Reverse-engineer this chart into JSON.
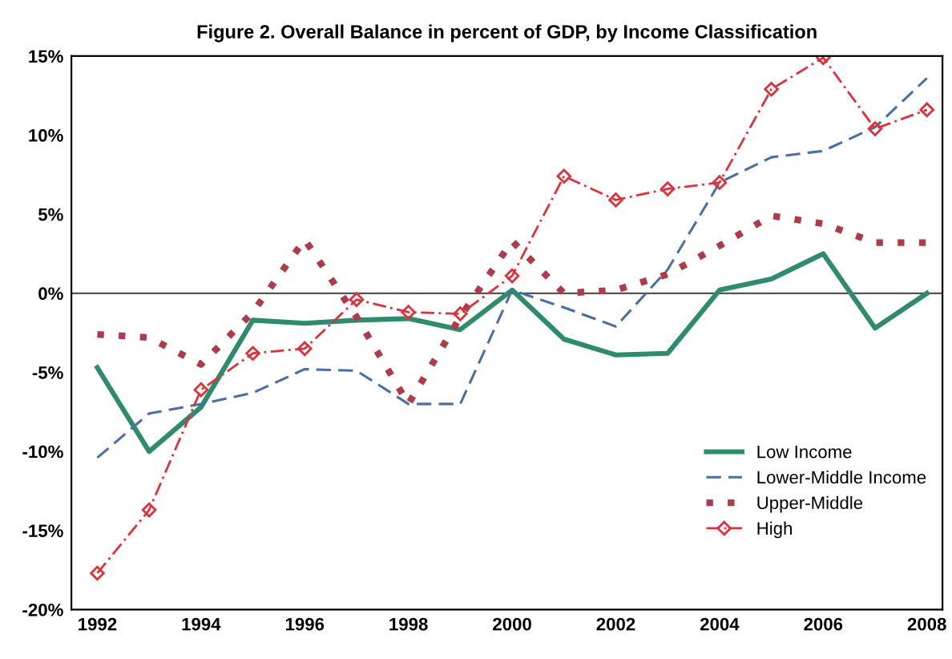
{
  "chart_data": {
    "type": "line",
    "title": "Figure 2. Overall Balance in percent of GDP, by Income Classification",
    "x": [
      1992,
      1993,
      1994,
      1995,
      1996,
      1997,
      1998,
      1999,
      2000,
      2001,
      2002,
      2003,
      2004,
      2005,
      2006,
      2007,
      2008
    ],
    "series": [
      {
        "name": "Low Income",
        "color": "#2e8b6e",
        "line_style": "solid",
        "marker": "none",
        "values": [
          -4.7,
          -10.0,
          -7.2,
          -1.7,
          -1.9,
          -1.7,
          -1.6,
          -2.3,
          0.2,
          -2.9,
          -3.9,
          -3.8,
          0.2,
          0.9,
          2.5,
          -2.2,
          0.0
        ]
      },
      {
        "name": "Lower-Middle Income",
        "color": "#4a6fa5",
        "line_style": "dashed",
        "marker": "none",
        "values": [
          -10.4,
          -7.6,
          -7.0,
          -6.3,
          -4.8,
          -4.9,
          -7.0,
          -7.0,
          0.2,
          -0.9,
          -2.1,
          1.5,
          7.0,
          8.6,
          9.0,
          10.5,
          13.6
        ]
      },
      {
        "name": "Upper-Middle",
        "color": "#b03a4a",
        "line_style": "dotted",
        "marker": "none",
        "values": [
          -2.6,
          -2.8,
          -4.5,
          -1.2,
          3.4,
          -1.5,
          -7.0,
          -1.5,
          3.3,
          0.0,
          0.2,
          1.2,
          3.0,
          4.9,
          4.4,
          3.2,
          3.2
        ]
      },
      {
        "name": "High",
        "color": "#e0303a",
        "line_style": "dashdot",
        "marker": "diamond",
        "values": [
          -17.7,
          -13.7,
          -6.1,
          -3.8,
          -3.5,
          -0.4,
          -1.2,
          -1.3,
          1.1,
          7.4,
          5.9,
          6.6,
          7.0,
          12.9,
          14.9,
          10.4,
          11.6
        ]
      }
    ],
    "xlim": [
      1991.5,
      2008.3
    ],
    "xticks": [
      1992,
      1994,
      1996,
      1998,
      2000,
      2002,
      2004,
      2006,
      2008
    ],
    "ylim": [
      -20,
      15
    ],
    "yticks": [
      {
        "value": -20,
        "label": "-20%"
      },
      {
        "value": -15,
        "label": "-15%"
      },
      {
        "value": -10,
        "label": "-10%"
      },
      {
        "value": -5,
        "label": "-5%"
      },
      {
        "value": 0,
        "label": "0%"
      },
      {
        "value": 5,
        "label": "5%"
      },
      {
        "value": 10,
        "label": "10%"
      },
      {
        "value": 15,
        "label": "15%"
      }
    ],
    "ref_lines": [
      {
        "axis": "y",
        "value": 0,
        "color": "#555555"
      }
    ],
    "legend": "lower right",
    "grid": false
  }
}
